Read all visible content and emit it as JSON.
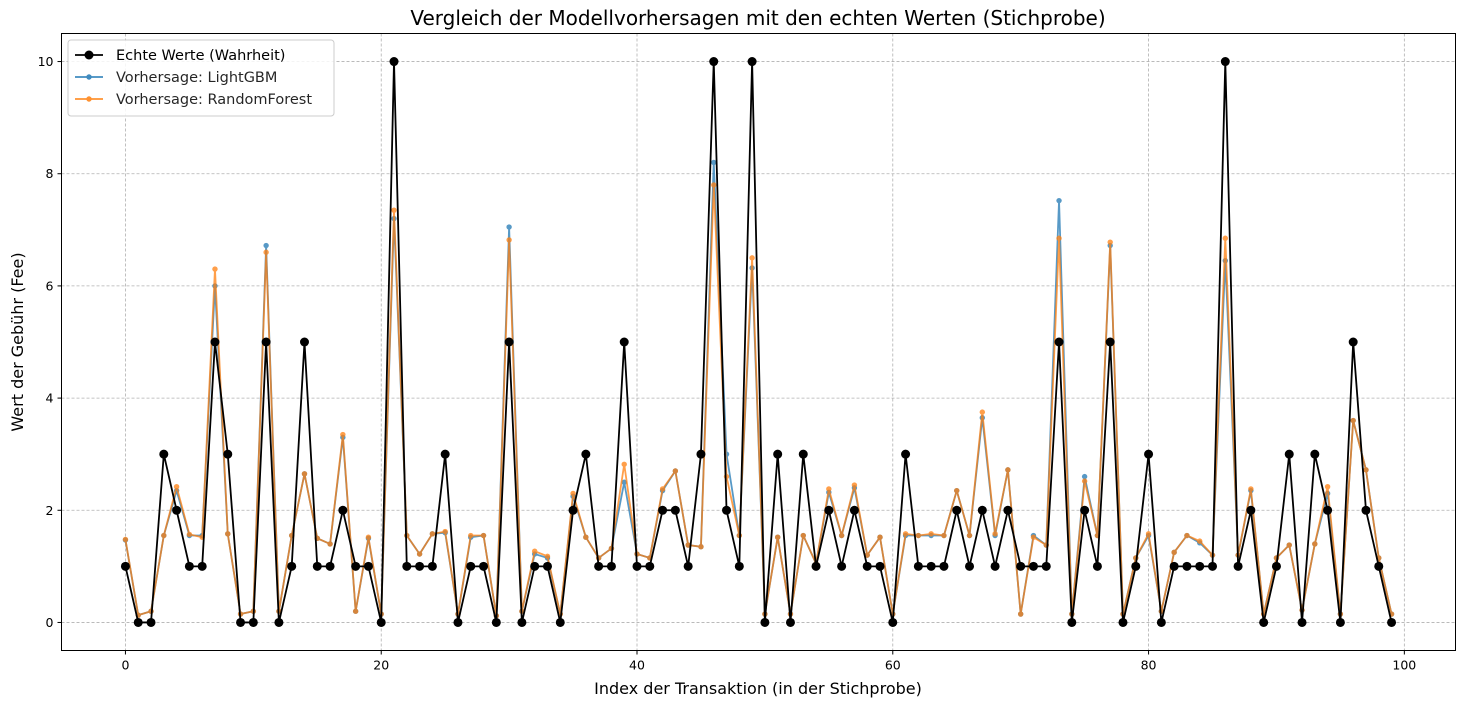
{
  "chart_data": {
    "type": "line",
    "title": "Vergleich der Modellvorhersagen mit den echten Werten (Stichprobe)",
    "xlabel": "Index der Transaktion (in der Stichprobe)",
    "ylabel": "Wert der Gebühr (Fee)",
    "xlim": [
      -5,
      104
    ],
    "ylim": [
      -0.5,
      10.5
    ],
    "xticks": [
      0,
      20,
      40,
      60,
      80,
      100
    ],
    "yticks": [
      0,
      2,
      4,
      6,
      8,
      10
    ],
    "grid": true,
    "legend_position": "top-left",
    "x": [
      0,
      1,
      2,
      3,
      4,
      5,
      6,
      7,
      8,
      9,
      10,
      11,
      12,
      13,
      14,
      15,
      16,
      17,
      18,
      19,
      20,
      21,
      22,
      23,
      24,
      25,
      26,
      27,
      28,
      29,
      30,
      31,
      32,
      33,
      34,
      35,
      36,
      37,
      38,
      39,
      40,
      41,
      42,
      43,
      44,
      45,
      46,
      47,
      48,
      49,
      50,
      51,
      52,
      53,
      54,
      55,
      56,
      57,
      58,
      59,
      60,
      61,
      62,
      63,
      64,
      65,
      66,
      67,
      68,
      69,
      70,
      71,
      72,
      73,
      74,
      75,
      76,
      77,
      78,
      79,
      80,
      81,
      82,
      83,
      84,
      85,
      86,
      87,
      88,
      89,
      90,
      91,
      92,
      93,
      94,
      95,
      96,
      97,
      98,
      99
    ],
    "series": [
      {
        "name": "Echte Werte (Wahrheit)",
        "color": "#000000",
        "values": [
          1,
          0,
          0,
          3,
          2,
          1,
          1,
          5,
          3,
          0,
          0,
          5,
          0,
          1,
          5,
          1,
          1,
          2,
          1,
          1,
          0,
          10,
          1,
          1,
          1,
          3,
          0,
          1,
          1,
          0,
          5,
          0,
          1,
          1,
          0,
          2,
          3,
          1,
          1,
          5,
          1,
          1,
          2,
          2,
          1,
          3,
          10,
          2,
          1,
          10,
          0,
          3,
          0,
          3,
          1,
          2,
          1,
          2,
          1,
          1,
          0,
          3,
          1,
          1,
          1,
          2,
          1,
          2,
          1,
          2,
          1,
          1,
          1,
          5,
          0,
          2,
          1,
          5,
          0,
          1,
          3,
          0,
          1,
          1,
          1,
          1,
          10,
          1,
          2,
          0,
          1,
          3,
          0,
          3,
          2,
          0,
          5,
          2,
          1,
          0
        ]
      },
      {
        "name": "Vorhersage: LightGBM",
        "color": "#1f77b4",
        "values": [
          1.47,
          0.13,
          0.2,
          1.55,
          2.35,
          1.55,
          1.55,
          6.0,
          1.58,
          0.15,
          0.2,
          6.72,
          0.2,
          1.55,
          2.65,
          1.5,
          1.4,
          3.3,
          0.2,
          1.5,
          0.15,
          7.2,
          1.55,
          1.22,
          1.58,
          1.6,
          0.15,
          1.52,
          1.55,
          0.12,
          7.05,
          0.2,
          1.22,
          1.15,
          0.15,
          2.25,
          1.52,
          1.15,
          1.32,
          2.5,
          1.22,
          1.15,
          2.35,
          2.7,
          1.38,
          1.35,
          8.2,
          3.0,
          1.55,
          6.32,
          0.15,
          1.52,
          0.15,
          1.55,
          1.05,
          2.32,
          1.55,
          2.4,
          1.2,
          1.52,
          0.15,
          1.55,
          1.55,
          1.55,
          1.55,
          2.35,
          1.55,
          3.65,
          1.55,
          2.72,
          0.15,
          1.55,
          1.38,
          7.52,
          0.15,
          2.6,
          1.55,
          6.72,
          0.15,
          1.15,
          1.55,
          0.2,
          1.25,
          1.55,
          1.42,
          1.2,
          6.45,
          1.2,
          2.35,
          0.15,
          1.15,
          1.38,
          0.22,
          1.4,
          2.3,
          0.15,
          3.6,
          2.72,
          1.15,
          0.15
        ]
      },
      {
        "name": "Vorhersage: RandomForest",
        "color": "#ff7f0e",
        "values": [
          1.48,
          0.13,
          0.2,
          1.55,
          2.42,
          1.57,
          1.52,
          6.3,
          1.58,
          0.15,
          0.2,
          6.6,
          0.2,
          1.55,
          2.65,
          1.5,
          1.4,
          3.35,
          0.2,
          1.52,
          0.15,
          7.35,
          1.55,
          1.22,
          1.58,
          1.62,
          0.15,
          1.55,
          1.55,
          0.12,
          6.82,
          0.2,
          1.27,
          1.18,
          0.15,
          2.3,
          1.52,
          1.15,
          1.32,
          2.82,
          1.22,
          1.15,
          2.38,
          2.7,
          1.38,
          1.35,
          7.8,
          2.6,
          1.55,
          6.5,
          0.15,
          1.52,
          0.15,
          1.55,
          1.05,
          2.38,
          1.55,
          2.45,
          1.2,
          1.52,
          0.15,
          1.58,
          1.55,
          1.58,
          1.55,
          2.35,
          1.55,
          3.75,
          1.58,
          2.72,
          0.15,
          1.52,
          1.38,
          6.85,
          0.15,
          2.52,
          1.55,
          6.78,
          0.15,
          1.15,
          1.58,
          0.2,
          1.25,
          1.55,
          1.45,
          1.2,
          6.85,
          1.2,
          2.38,
          0.15,
          1.15,
          1.38,
          0.22,
          1.4,
          2.42,
          0.15,
          3.6,
          2.72,
          1.15,
          0.15
        ]
      }
    ]
  }
}
